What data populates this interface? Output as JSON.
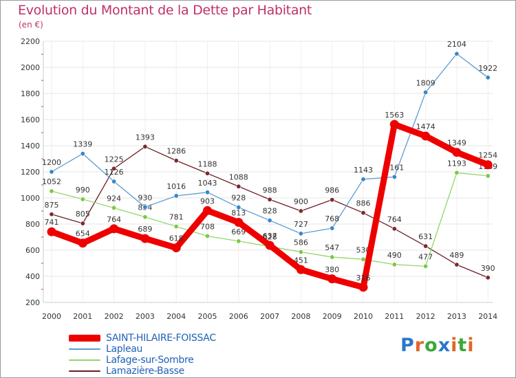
{
  "header": {
    "title": "Evolution du Montant de la Dette par Habitant",
    "subtitle": "(en €)"
  },
  "logo": {
    "text": "Proxiti",
    "colors": [
      "#2b77c8",
      "#e0662a",
      "#39a935",
      "#2b77c8",
      "#e0662a",
      "#39a935",
      "#e0662a"
    ]
  },
  "chart_data": {
    "type": "line",
    "title": "Evolution du Montant de la Dette par Habitant",
    "subtitle": "(en €)",
    "xlabel": "",
    "ylabel": "",
    "x": [
      "2000",
      "2001",
      "2002",
      "2003",
      "2004",
      "2005",
      "2006",
      "2007",
      "2008",
      "2009",
      "2010",
      "2011",
      "2012",
      "2013",
      "2014"
    ],
    "ylim": [
      200,
      2200
    ],
    "yticks": [
      200,
      400,
      600,
      800,
      1000,
      1200,
      1400,
      1600,
      1800,
      2000,
      2200
    ],
    "grid": true,
    "legend_position": "bottom-left",
    "series": [
      {
        "name": "Lamazière-Basse",
        "color": "#6b1f26",
        "marker_color": "#7a2a30",
        "width": "thin",
        "values": [
          875,
          805,
          1225,
          1393,
          1286,
          1188,
          1088,
          988,
          900,
          986,
          886,
          764,
          631,
          489,
          390
        ],
        "labels": [
          "875",
          "805",
          "1225",
          "1393",
          "1286",
          "1188",
          "1088",
          "988",
          "900",
          "986",
          "886",
          "764",
          "631",
          "489",
          "390"
        ]
      },
      {
        "name": "Lafage-sur-Sombre",
        "color": "#92d46b",
        "marker_color": "#7dc844",
        "width": "thin",
        "values": [
          1052,
          990,
          924,
          854,
          781,
          708,
          669,
          628,
          586,
          547,
          530,
          490,
          477,
          1193,
          1169
        ],
        "labels": [
          "1052",
          "990",
          "924",
          "854",
          "781",
          "708",
          "669",
          "628",
          "586",
          "547",
          "530",
          "490",
          "477",
          "1193",
          "1169"
        ]
      },
      {
        "name": "Lapleau",
        "color": "#5b9bd0",
        "marker_color": "#3a86c8",
        "width": "thin",
        "values": [
          1200,
          1339,
          1126,
          930,
          1016,
          1043,
          928,
          828,
          727,
          768,
          1143,
          1161,
          1809,
          2104,
          1922
        ],
        "labels": [
          "1200",
          "1339",
          "1126",
          "930",
          "1016",
          "1043",
          "928",
          "828",
          "727",
          "768",
          "1143",
          "1161",
          "1809",
          "2104",
          "1922"
        ]
      },
      {
        "name": "SAINT-HILAIRE-FOISSAC",
        "color": "#ee0000",
        "marker_color": "#ee0000",
        "width": "thick",
        "values": [
          741,
          654,
          764,
          689,
          618,
          903,
          813,
          637,
          451,
          380,
          316,
          1563,
          1474,
          1349,
          1254
        ],
        "labels": [
          "741",
          "654",
          "764",
          "689",
          "618",
          "903",
          "813",
          "637",
          "451",
          "380",
          "316",
          "1563",
          "1474",
          "1349",
          "1254"
        ]
      }
    ],
    "legend_order": [
      "SAINT-HILAIRE-FOISSAC",
      "Lapleau",
      "Lafage-sur-Sombre",
      "Lamazière-Basse"
    ]
  }
}
